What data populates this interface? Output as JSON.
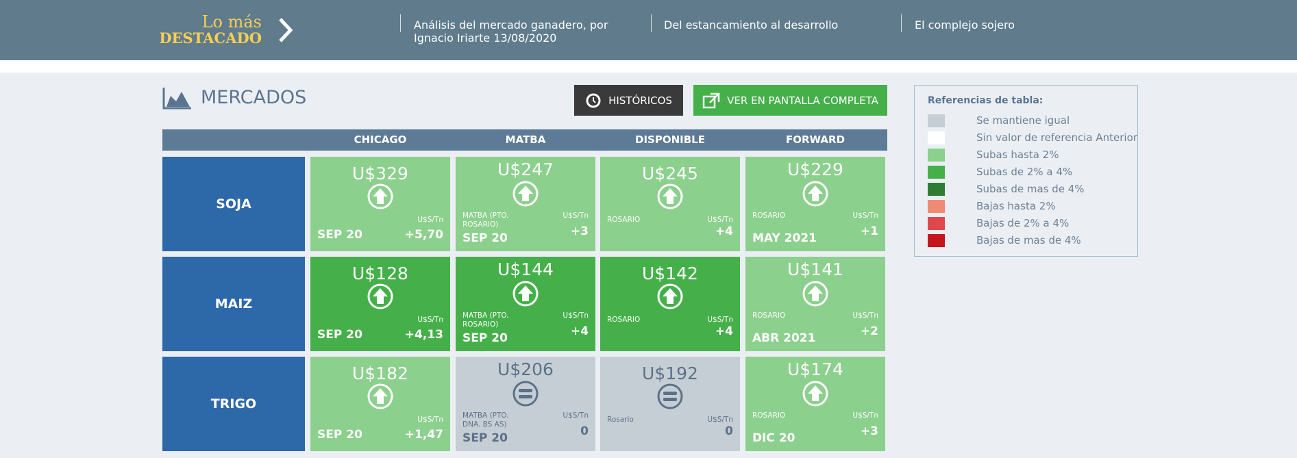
{
  "header": {
    "brand_top": "Lo más",
    "brand_bottom": "DESTACADO",
    "links": [
      "Análisis del mercado ganadero, por Ignacio Iriarte 13/08/2020",
      "Del estancamiento al desarrollo",
      "El complejo sojero"
    ]
  },
  "markets": {
    "title": "MERCADOS",
    "buttons": [
      "HISTÓRICOS",
      "VER EN PANTALLA COMPLETA"
    ],
    "columns": [
      "CHICAGO",
      "MATBA",
      "DISPONIBLE",
      "FORWARD"
    ],
    "rows": [
      {
        "name": "SOJA",
        "cells": [
          {
            "price": "U$329",
            "unit": "U$S/Tn",
            "period": "SEP 20",
            "change": "+5,70",
            "trend": "up",
            "color": "#8bd08c"
          },
          {
            "price": "U$247",
            "place": "MATBA (PTO. ROSARIO)",
            "unit": "U$S/Tn",
            "period": "SEP 20",
            "change": "+3",
            "trend": "up",
            "color": "#8bd08c"
          },
          {
            "price": "U$245",
            "place": "ROSARIO",
            "unit": "U$S/Tn",
            "change": "+4",
            "trend": "up",
            "color": "#8bd08c"
          },
          {
            "price": "U$229",
            "place": "ROSARIO",
            "unit": "U$S/Tn",
            "period": "MAY 2021",
            "change": "+1",
            "trend": "up",
            "color": "#8bd08c"
          }
        ]
      },
      {
        "name": "MAIZ",
        "cells": [
          {
            "price": "U$128",
            "unit": "U$S/Tn",
            "period": "SEP 20",
            "change": "+4,13",
            "trend": "up",
            "color": "#45b049"
          },
          {
            "price": "U$144",
            "place": "MATBA (PTO. ROSARIO)",
            "unit": "U$S/Tn",
            "period": "SEP 20",
            "change": "+4",
            "trend": "up",
            "color": "#45b049"
          },
          {
            "price": "U$142",
            "place": "ROSARIO",
            "unit": "U$S/Tn",
            "change": "+4",
            "trend": "up",
            "color": "#45b049"
          },
          {
            "price": "U$141",
            "place": "ROSARIO",
            "unit": "U$S/Tn",
            "period": "ABR 2021",
            "change": "+2",
            "trend": "up",
            "color": "#8bd08c"
          }
        ]
      },
      {
        "name": "TRIGO",
        "cells": [
          {
            "price": "U$182",
            "unit": "U$S/Tn",
            "period": "SEP 20",
            "change": "+1,47",
            "trend": "up",
            "color": "#8bd08c"
          },
          {
            "price": "U$206",
            "place": "MATBA (PTO. DNA. BS AS)",
            "unit": "U$S/Tn",
            "period": "SEP 20",
            "change": "0",
            "trend": "equal",
            "color": "#c6ced5"
          },
          {
            "price": "U$192",
            "place": "Rosario",
            "unit": "U$S/Tn",
            "change": "0",
            "trend": "equal",
            "color": "#c6ced5"
          },
          {
            "price": "U$174",
            "place": "ROSARIO",
            "unit": "U$S/Tn",
            "period": "DIC 20",
            "change": "+3",
            "trend": "up",
            "color": "#8bd08c"
          }
        ]
      }
    ]
  },
  "legend": {
    "title": "Referencias de tabla:",
    "items": [
      {
        "label": "Se mantiene igual",
        "color": "#c6ced5"
      },
      {
        "label": "Sin valor de referencia Anterior",
        "color": "#ffffff"
      },
      {
        "label": "Subas hasta 2%",
        "color": "#8bd08c"
      },
      {
        "label": "Subas de 2% a 4%",
        "color": "#45b049"
      },
      {
        "label": "Subas de mas de 4%",
        "color": "#2f7d33"
      },
      {
        "label": "Bajas hasta 2%",
        "color": "#ef8a73"
      },
      {
        "label": "Bajas de 2% a 4%",
        "color": "#e0474c"
      },
      {
        "label": "Bajas de mas de 4%",
        "color": "#c4161c"
      }
    ]
  }
}
